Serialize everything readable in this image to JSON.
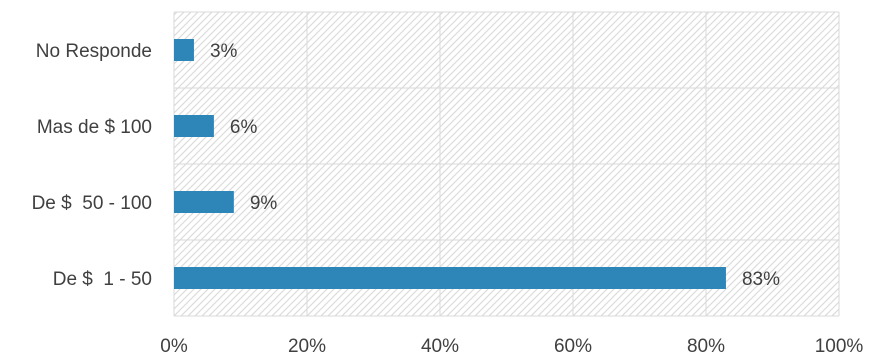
{
  "chart_data": {
    "type": "bar",
    "orientation": "horizontal",
    "categories": [
      "No Responde",
      "Mas de $ 100",
      "De $  50 - 100",
      "De $  1 - 50"
    ],
    "values": [
      3,
      6,
      9,
      83
    ],
    "data_labels": [
      "3%",
      "6%",
      "9%",
      "83%"
    ],
    "xlim": [
      0,
      100
    ],
    "x_ticks": [
      0,
      20,
      40,
      60,
      80,
      100
    ],
    "x_tick_labels": [
      "0%",
      "20%",
      "40%",
      "60%",
      "80%",
      "100%"
    ],
    "grid": true,
    "legend": "none",
    "colors": {
      "bar": "#2E86B8",
      "grid": "#d9d9d9",
      "hatch": "#dcdcdc",
      "text": "#404040"
    }
  }
}
